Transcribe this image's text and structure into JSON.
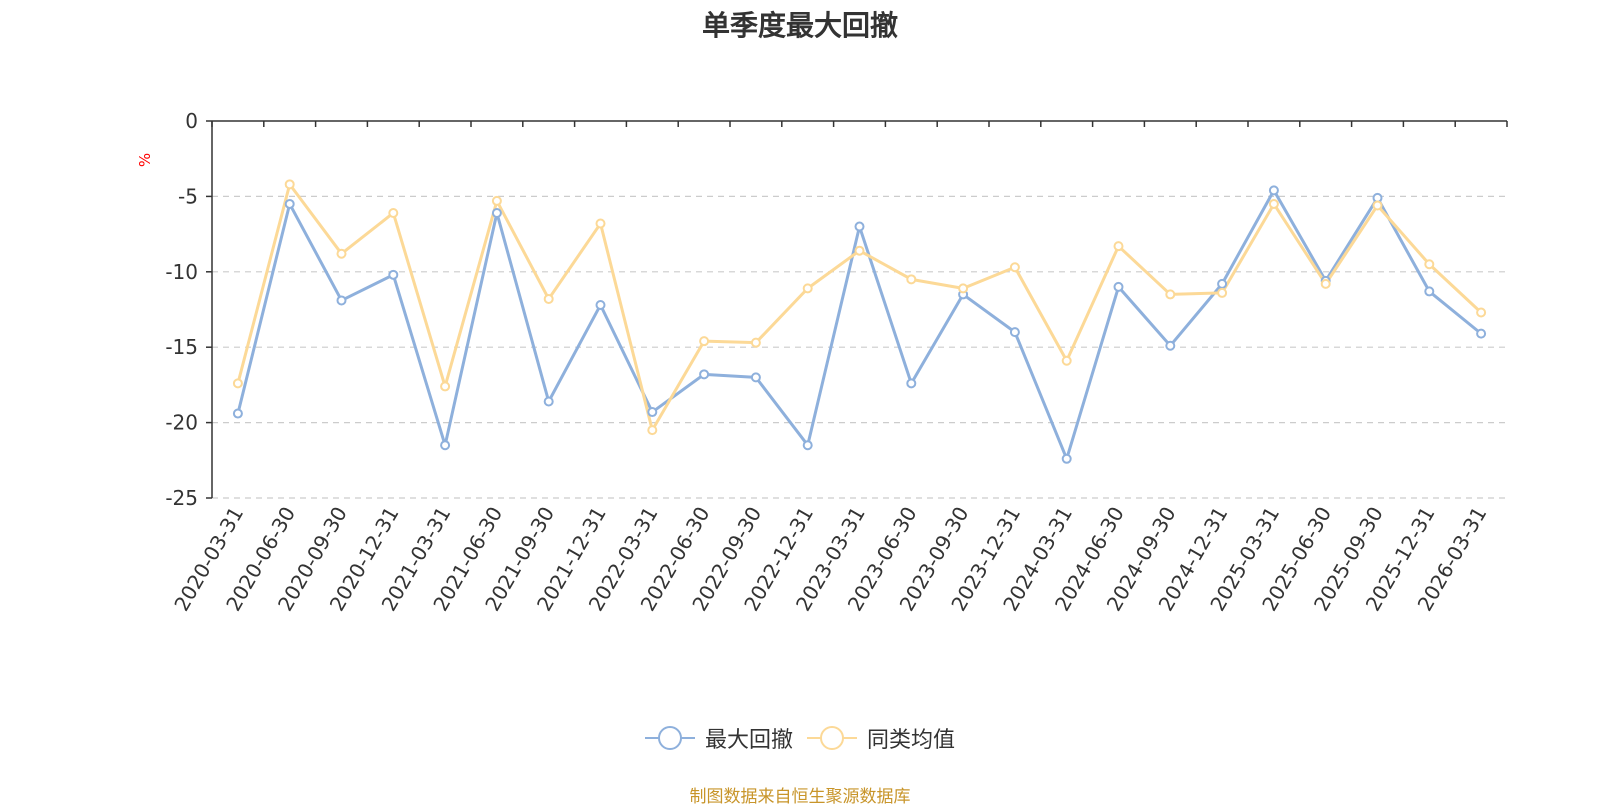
{
  "chart_data": {
    "type": "line",
    "title": "单季度最大回撤",
    "ylabel": "%",
    "ylim": [
      -25,
      0
    ],
    "yticks": [
      0,
      -5,
      -10,
      -15,
      -20,
      -25
    ],
    "grid": true,
    "legend_position": "bottom-center",
    "categories": [
      "2020-03-31",
      "2020-06-30",
      "2020-09-30",
      "2020-12-31",
      "2021-03-31",
      "2021-06-30",
      "2021-09-30",
      "2021-12-31",
      "2022-03-31",
      "2022-06-30",
      "2022-09-30",
      "2022-12-31",
      "2023-03-31",
      "2023-06-30",
      "2023-09-30",
      "2023-12-31",
      "2024-03-31",
      "2024-06-30",
      "2024-09-30",
      "2024-12-31",
      "2025-03-31",
      "2025-06-30",
      "2025-09-30",
      "2025-12-31",
      "2026-03-31"
    ],
    "series": [
      {
        "name": "最大回撤",
        "color": "#8eb0dc",
        "values": [
          -19.4,
          -5.5,
          -11.9,
          -10.2,
          -21.5,
          -6.1,
          -18.6,
          -12.2,
          -19.3,
          -16.8,
          -17.0,
          -21.5,
          -7.0,
          -17.4,
          -11.5,
          -14.0,
          -22.4,
          -11.0,
          -14.9,
          -10.8,
          -4.6,
          -10.6,
          -5.1,
          -11.3,
          -14.1
        ]
      },
      {
        "name": "同类均值",
        "color": "#fcd997",
        "values": [
          -17.4,
          -4.2,
          -8.8,
          -6.1,
          -17.6,
          -5.3,
          -11.8,
          -6.8,
          -20.5,
          -14.6,
          -14.7,
          -11.1,
          -8.6,
          -10.5,
          -11.1,
          -9.7,
          -15.9,
          -8.3,
          -11.5,
          -11.4,
          -5.5,
          -10.8,
          -5.6,
          -9.5,
          -12.7
        ]
      }
    ]
  },
  "source_note": "制图数据来自恒生聚源数据库"
}
